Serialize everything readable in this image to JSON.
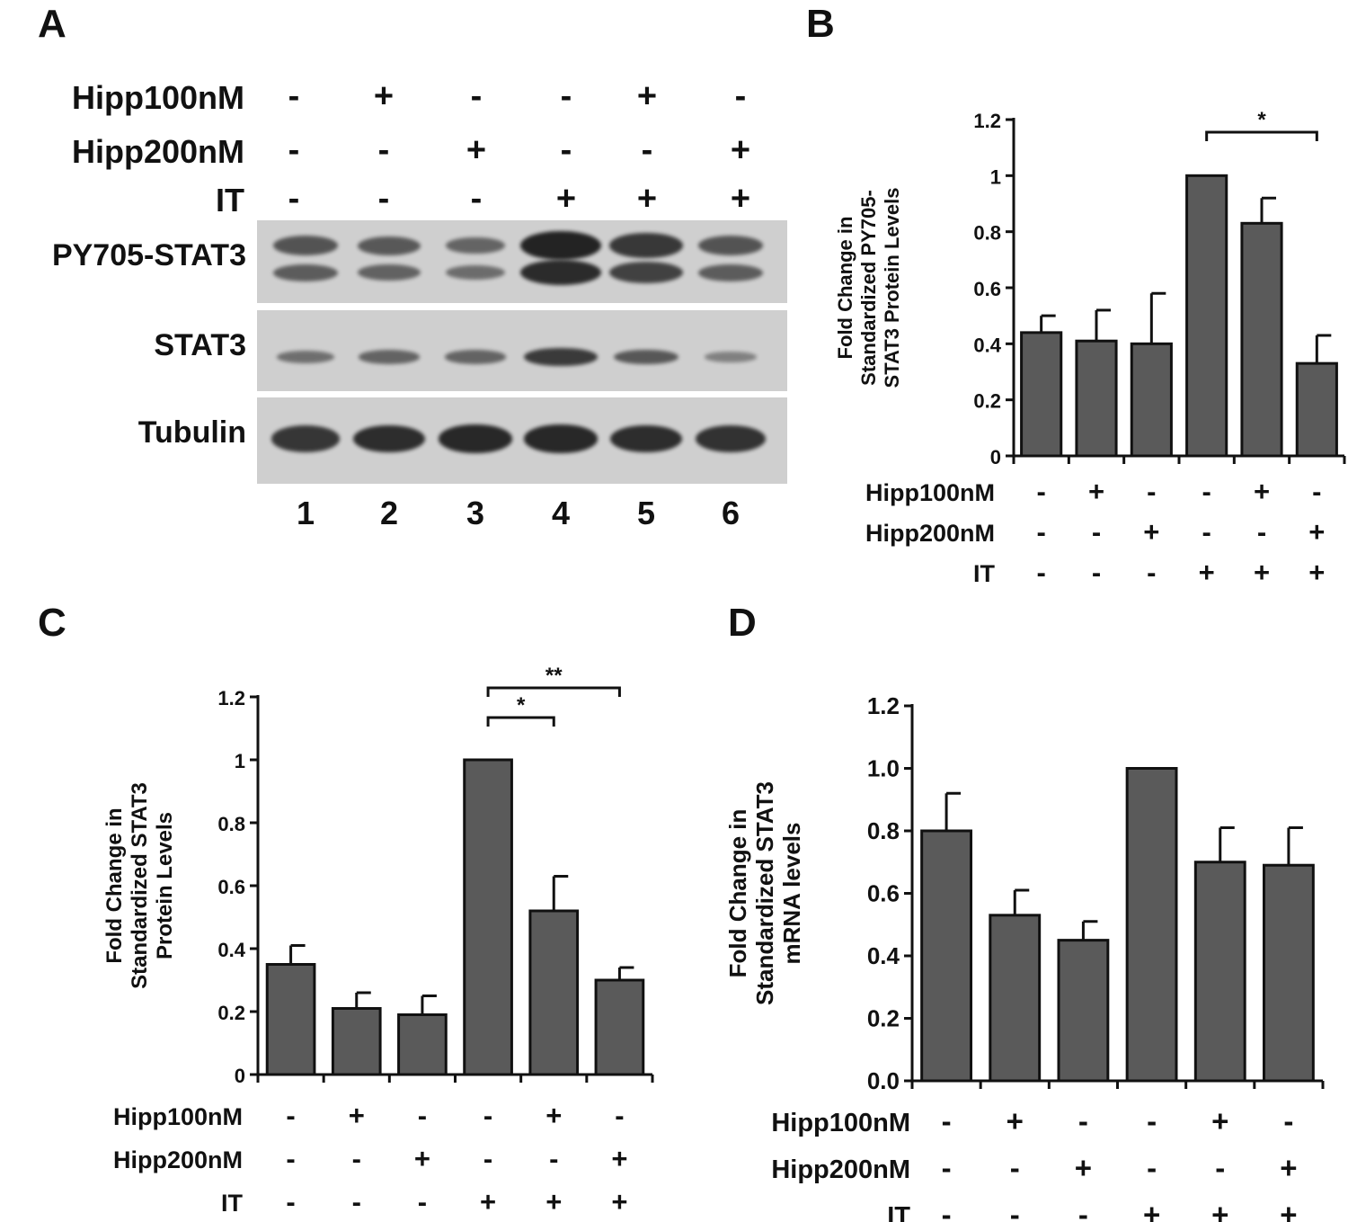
{
  "panelA": {
    "letter": "A",
    "conditions": [
      {
        "label": "Hipp100nM",
        "signs": [
          "-",
          "+",
          "-",
          "-",
          "+",
          "-"
        ]
      },
      {
        "label": "Hipp200nM",
        "signs": [
          "-",
          "-",
          "+",
          "-",
          "-",
          "+"
        ]
      },
      {
        "label": "IT",
        "signs": [
          "-",
          "-",
          "-",
          "+",
          "+",
          "+"
        ]
      }
    ],
    "blots": [
      {
        "label": "PY705-STAT3"
      },
      {
        "label": "STAT3"
      },
      {
        "label": "Tubulin"
      }
    ],
    "band_intensity": {
      "PY705-STAT3": [
        0.55,
        0.5,
        0.4,
        1.0,
        0.8,
        0.55
      ],
      "STAT3": [
        0.35,
        0.45,
        0.45,
        0.8,
        0.55,
        0.2
      ],
      "Tubulin": [
        0.8,
        0.9,
        0.95,
        0.95,
        0.9,
        0.85
      ]
    },
    "lanes": [
      "1",
      "2",
      "3",
      "4",
      "5",
      "6"
    ]
  },
  "chart_data": [
    {
      "panel": "B",
      "type": "bar",
      "title": "",
      "ylabel": "Fold Change in Standardized PY705-STAT3 Protein Levels",
      "ylabel_lines": [
        "Fold Change in",
        "Standardized PY705-",
        "STAT3 Protein Levels"
      ],
      "ylim": [
        0,
        1.2
      ],
      "yticks": [
        "0",
        "0.2",
        "0.4",
        "0.6",
        "0.8",
        "1",
        "1.2"
      ],
      "values": [
        0.44,
        0.41,
        0.4,
        1.0,
        0.83,
        0.33
      ],
      "errors": [
        0.06,
        0.11,
        0.18,
        0,
        0.09,
        0.1
      ],
      "significance": [
        {
          "from": 3,
          "to": 5,
          "label": "*"
        }
      ],
      "conditions": [
        {
          "label": "Hipp100nM",
          "signs": [
            "-",
            "+",
            "-",
            "-",
            "+",
            "-"
          ]
        },
        {
          "label": "Hipp200nM",
          "signs": [
            "-",
            "-",
            "+",
            "-",
            "-",
            "+"
          ]
        },
        {
          "label": "IT",
          "signs": [
            "-",
            "-",
            "-",
            "+",
            "+",
            "+"
          ]
        }
      ]
    },
    {
      "panel": "C",
      "type": "bar",
      "title": "",
      "ylabel": "Fold Change in Standardized STAT3 Protein Levels",
      "ylabel_lines": [
        "Fold Change in",
        "Standardized STAT3",
        "Protein Levels"
      ],
      "ylim": [
        0,
        1.2
      ],
      "yticks": [
        "0",
        "0.2",
        "0.4",
        "0.6",
        "0.8",
        "1",
        "1.2"
      ],
      "values": [
        0.35,
        0.21,
        0.19,
        1.0,
        0.52,
        0.3
      ],
      "errors": [
        0.06,
        0.05,
        0.06,
        0,
        0.11,
        0.04
      ],
      "significance": [
        {
          "from": 3,
          "to": 4,
          "label": "*"
        },
        {
          "from": 3,
          "to": 5,
          "label": "**"
        }
      ],
      "conditions": [
        {
          "label": "Hipp100nM",
          "signs": [
            "-",
            "+",
            "-",
            "-",
            "+",
            "-"
          ]
        },
        {
          "label": "Hipp200nM",
          "signs": [
            "-",
            "-",
            "+",
            "-",
            "-",
            "+"
          ]
        },
        {
          "label": "IT",
          "signs": [
            "-",
            "-",
            "-",
            "+",
            "+",
            "+"
          ]
        }
      ]
    },
    {
      "panel": "D",
      "type": "bar",
      "title": "",
      "ylabel": "Fold Change in Standardized STAT3 mRNA levels",
      "ylabel_lines": [
        "Fold Change in",
        "Standardized STAT3",
        "mRNA levels"
      ],
      "ylim": [
        0,
        1.2
      ],
      "yticks": [
        "0.0",
        "0.2",
        "0.4",
        "0.6",
        "0.8",
        "1.0",
        "1.2"
      ],
      "values": [
        0.8,
        0.53,
        0.45,
        1.0,
        0.7,
        0.69
      ],
      "errors": [
        0.12,
        0.08,
        0.06,
        0,
        0.11,
        0.12
      ],
      "significance": [],
      "conditions": [
        {
          "label": "Hipp100nM",
          "signs": [
            "-",
            "+",
            "-",
            "-",
            "+",
            "-"
          ]
        },
        {
          "label": "Hipp200nM",
          "signs": [
            "-",
            "-",
            "+",
            "-",
            "-",
            "+"
          ]
        },
        {
          "label": "IT",
          "signs": [
            "-",
            "-",
            "-",
            "+",
            "+",
            "+"
          ]
        }
      ]
    }
  ],
  "colors": {
    "bar": "#5a5a5a",
    "axis": "#111111",
    "blot_bg": "#cfcfcf",
    "band": "#1a1a1a"
  }
}
